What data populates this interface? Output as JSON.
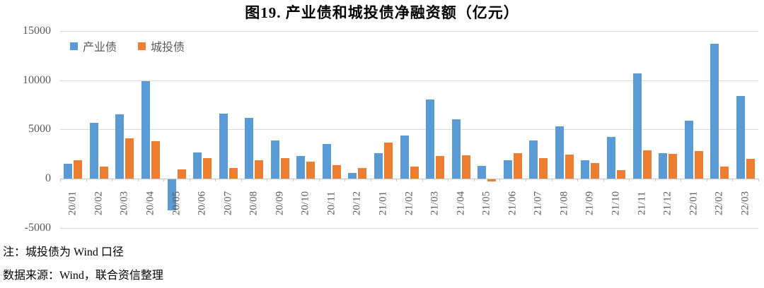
{
  "title": "图19.  产业债和城投债净融资额（亿元）",
  "notes": {
    "line1": "注：城投债为 Wind 口径",
    "line2": "数据来源：Wind，联合资信整理"
  },
  "colors": {
    "series_blue": "#5B9BD5",
    "series_orange": "#ED7D31",
    "gridline": "#D9D9D9",
    "axis_text": "#595959",
    "title_text": "#000000"
  },
  "chart_data": {
    "type": "bar",
    "title": "图19.  产业债和城投债净融资额（亿元）",
    "categories": [
      "20/01",
      "20/02",
      "20/03",
      "20/04",
      "20/05",
      "20/06",
      "20/07",
      "20/08",
      "20/09",
      "20/10",
      "20/11",
      "20/12",
      "21/01",
      "21/02",
      "21/03",
      "21/04",
      "21/05",
      "21/06",
      "21/07",
      "21/08",
      "21/09",
      "21/10",
      "21/11",
      "21/12",
      "22/01",
      "22/02",
      "22/03"
    ],
    "series": [
      {
        "name": "产业债",
        "color": "#5B9BD5",
        "values": [
          1500,
          5700,
          6500,
          9900,
          -3150,
          2650,
          6600,
          6200,
          3900,
          2300,
          3500,
          550,
          2550,
          4400,
          8000,
          6000,
          1300,
          1900,
          3900,
          5300,
          1850,
          4200,
          10700,
          2600,
          5900,
          13700,
          8400
        ]
      },
      {
        "name": "城投债",
        "color": "#ED7D31",
        "values": [
          1900,
          1200,
          4100,
          3800,
          950,
          2100,
          1100,
          1850,
          2100,
          1700,
          1350,
          1100,
          3650,
          1200,
          2300,
          2400,
          -200,
          2600,
          2050,
          2450,
          1600,
          850,
          2850,
          2500,
          2800,
          1200,
          2000
        ]
      }
    ],
    "xlabel": "",
    "ylabel": "",
    "ylim": [
      -5000,
      15000
    ],
    "yticks": [
      15000,
      10000,
      5000,
      0,
      -5000
    ],
    "grid": true,
    "legend_position": "top-left-inside",
    "x_tick_rotation": -90
  }
}
